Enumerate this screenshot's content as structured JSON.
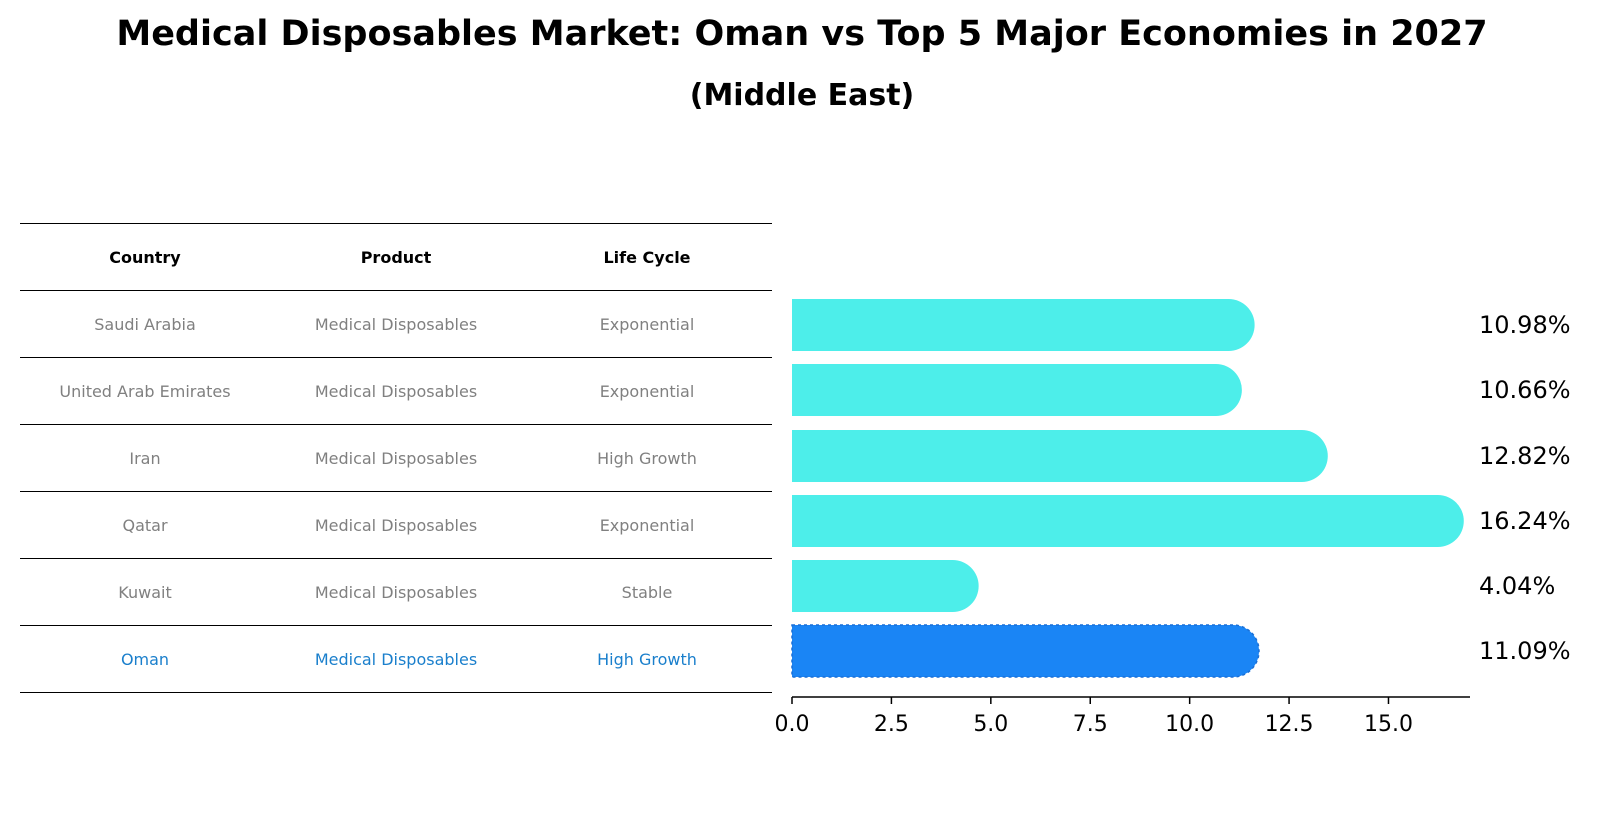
{
  "title": "Medical Disposables Market: Oman vs Top 5 Major Economies in 2027",
  "subtitle": "(Middle East)",
  "table": {
    "headers": [
      "Country",
      "Product",
      "Life Cycle"
    ],
    "rows": [
      [
        "Saudi Arabia",
        "Medical Disposables",
        "Exponential"
      ],
      [
        "United Arab Emirates",
        "Medical Disposables",
        "Exponential"
      ],
      [
        "Iran",
        "Medical Disposables",
        "High Growth"
      ],
      [
        "Qatar",
        "Medical Disposables",
        "Exponential"
      ],
      [
        "Kuwait",
        "Medical Disposables",
        "Stable"
      ],
      [
        "Oman",
        "Medical Disposables",
        "High Growth"
      ]
    ],
    "highlight_row": 5,
    "text_color": "#808080",
    "highlight_text_color": "#1a7fcc"
  },
  "chart_data": {
    "type": "bar",
    "orientation": "horizontal",
    "categories": [
      "Saudi Arabia",
      "United Arab Emirates",
      "Iran",
      "Qatar",
      "Kuwait",
      "Oman"
    ],
    "values": [
      10.98,
      10.66,
      12.82,
      16.24,
      4.04,
      11.09
    ],
    "value_labels": [
      "10.98%",
      "10.66%",
      "12.82%",
      "16.24%",
      "4.04%",
      "11.09%"
    ],
    "xlim": [
      0,
      17.05
    ],
    "xticks": [
      0.0,
      2.5,
      5.0,
      7.5,
      10.0,
      12.5,
      15.0
    ],
    "xtick_labels": [
      "0.0",
      "2.5",
      "5.0",
      "7.5",
      "10.0",
      "12.5",
      "15.0"
    ],
    "bar_color": "#4deeea",
    "highlight_color": "#1a85f5",
    "highlight_index": 5,
    "title": "Medical Disposables Market: Oman vs Top 5 Major Economies in 2027",
    "subtitle": "(Middle East)",
    "xlabel": "",
    "ylabel": ""
  }
}
